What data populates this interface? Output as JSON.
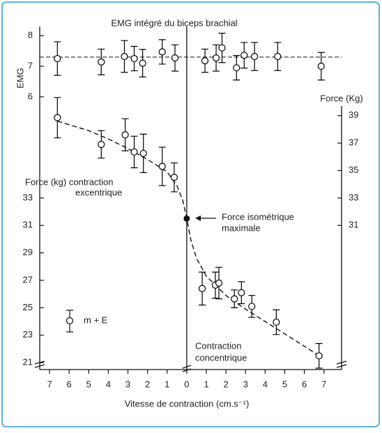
{
  "chart_data": [
    {
      "type": "scatter",
      "title": "EMG intégré du biceps brachial",
      "y_label": "EMG",
      "xlim": [
        -7.5,
        7.9
      ],
      "ylim": [
        5.7,
        8.3
      ],
      "yticks": [
        6,
        7,
        8
      ],
      "hline": 7.3,
      "series": [
        {
          "color": "#000000",
          "x": [
            -6.6,
            -4.36,
            -3.18,
            -2.68,
            -2.25,
            -1.25,
            -0.6,
            0.93,
            1.5,
            1.8,
            2.54,
            2.93,
            3.46,
            4.64,
            6.86
          ],
          "y": [
            7.25,
            7.14,
            7.32,
            7.25,
            7.1,
            7.47,
            7.27,
            7.18,
            7.27,
            7.6,
            6.95,
            7.36,
            7.32,
            7.32,
            7.0
          ],
          "error": [
            0.55,
            0.42,
            0.52,
            0.4,
            0.45,
            0.4,
            0.43,
            0.38,
            0.43,
            0.48,
            0.4,
            0.42,
            0.46,
            0.46,
            0.45
          ]
        }
      ]
    },
    {
      "type": "scatter",
      "x_label": "Vitesse de contraction (cm.s⁻¹)",
      "y2_label": "Force (Kg)",
      "xlim": [
        -7.5,
        7.9
      ],
      "xticks": [
        {
          "value": -7,
          "label": "7"
        },
        {
          "value": -6,
          "label": "6"
        },
        {
          "value": -5,
          "label": "5"
        },
        {
          "value": -4,
          "label": "4"
        },
        {
          "value": -3,
          "label": "3"
        },
        {
          "value": -2,
          "label": "2"
        },
        {
          "value": -1,
          "label": "1"
        },
        0,
        1,
        2,
        3,
        4,
        5,
        6,
        7
      ],
      "ylim": [
        20.5,
        39.7
      ],
      "yticks": [
        21,
        23,
        25,
        27,
        29,
        31,
        33
      ],
      "y2ticks": [
        31,
        33,
        35,
        37,
        39
      ],
      "series": [
        {
          "color": "#000000",
          "x": [
            -6.6,
            -4.36,
            -3.14,
            -2.68,
            -2.21,
            -1.25,
            -0.64,
            0.79,
            1.46,
            1.64,
            2.43,
            2.79,
            3.32,
            4.57,
            6.75
          ],
          "y": [
            38.85,
            36.9,
            37.6,
            36.35,
            36.25,
            35.3,
            34.5,
            26.4,
            26.65,
            26.8,
            25.65,
            26.1,
            25.1,
            23.95,
            21.5
          ],
          "error": [
            1.47,
            1.0,
            1.17,
            1.15,
            1.4,
            1.4,
            1.05,
            1.2,
            0.95,
            1.15,
            0.65,
            0.8,
            0.8,
            0.9,
            0.9
          ]
        }
      ],
      "curve": {
        "x": [
          -6.6,
          -5,
          -4,
          -3,
          -2,
          -1,
          -0.5,
          -0.2,
          0,
          0.2,
          0.5,
          1,
          2,
          3,
          4,
          5,
          6,
          6.75
        ],
        "y": [
          38.6,
          37.9,
          37.3,
          36.6,
          35.8,
          34.9,
          33.9,
          32.8,
          31.5,
          30.0,
          28.6,
          27.3,
          25.9,
          24.9,
          24.0,
          23.1,
          22.2,
          21.5
        ]
      },
      "isometric": {
        "x": 0,
        "y": 31.5,
        "label": [
          "Force isométrique",
          "maximale"
        ]
      },
      "annotations": [
        [
          "Force (kg) contraction",
          "excentrique"
        ],
        [
          "Contraction",
          "concentrique"
        ]
      ],
      "legend": "m + E"
    }
  ]
}
